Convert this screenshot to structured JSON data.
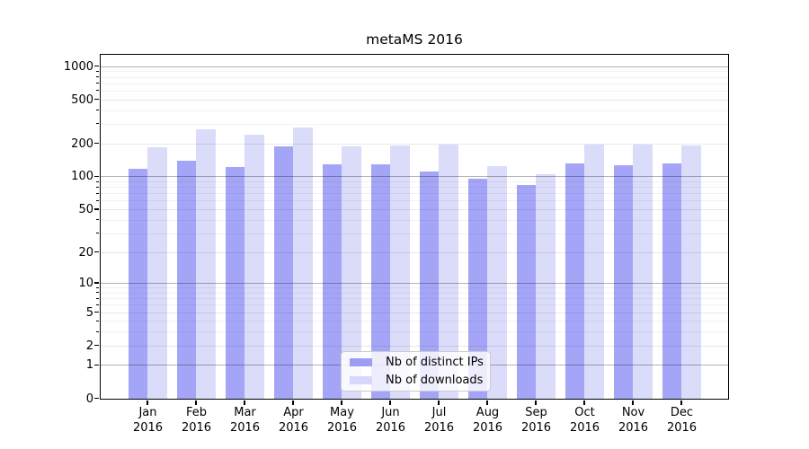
{
  "chart_data": {
    "type": "bar",
    "title": "metaMS 2016",
    "x_categories": [
      {
        "month": "Jan",
        "year": "2016"
      },
      {
        "month": "Feb",
        "year": "2016"
      },
      {
        "month": "Mar",
        "year": "2016"
      },
      {
        "month": "Apr",
        "year": "2016"
      },
      {
        "month": "May",
        "year": "2016"
      },
      {
        "month": "Jun",
        "year": "2016"
      },
      {
        "month": "Jul",
        "year": "2016"
      },
      {
        "month": "Aug",
        "year": "2016"
      },
      {
        "month": "Sep",
        "year": "2016"
      },
      {
        "month": "Oct",
        "year": "2016"
      },
      {
        "month": "Nov",
        "year": "2016"
      },
      {
        "month": "Dec",
        "year": "2016"
      }
    ],
    "series": [
      {
        "name": "Nb of distinct IPs",
        "values": [
          117,
          139,
          122,
          188,
          128,
          128,
          111,
          96,
          84,
          130,
          127,
          132
        ]
      },
      {
        "name": "Nb of downloads",
        "values": [
          184,
          270,
          241,
          277,
          186,
          190,
          193,
          125,
          105,
          195,
          195,
          190
        ]
      }
    ],
    "y_axis": {
      "scale": "log10(value+1)",
      "range": [
        0,
        1000
      ],
      "ticks": [
        {
          "label": "1000",
          "value": 1000
        },
        {
          "label": "500",
          "value": 500
        },
        {
          "label": "200",
          "value": 200
        },
        {
          "label": "100",
          "value": 100
        },
        {
          "label": "50",
          "value": 50
        },
        {
          "label": "20",
          "value": 20
        },
        {
          "label": "10",
          "value": 10
        },
        {
          "label": "5",
          "value": 5
        },
        {
          "label": "2",
          "value": 2
        },
        {
          "label": "1",
          "value": 1
        },
        {
          "label": "0",
          "value": 0
        }
      ],
      "minor_tick_values": [
        900,
        800,
        700,
        600,
        400,
        300,
        90,
        80,
        70,
        60,
        40,
        30,
        9,
        8,
        7,
        6,
        4,
        3
      ],
      "emphasized_gridline_values": [
        1,
        10,
        100,
        1000
      ]
    },
    "legend": {
      "position": "bottom-center",
      "entries": [
        "Nb of distinct IPs",
        "Nb of downloads"
      ]
    },
    "grid": "both"
  },
  "colors": {
    "bar_distinct_ips": "#a5a5f8",
    "bar_downloads": "#dbdbfa",
    "legend_swatch_distinct_ips": "#9d9df3",
    "legend_swatch_downloads": "#d7d7f9",
    "grid_power_line": "rgba(0,0,0,0.30)",
    "grid_labeled_line": "rgba(0,0,0,0.09)",
    "grid_minor_line": "rgba(0,0,0,0.05)",
    "frame": "#000000",
    "text": "#000000",
    "legend_background": "rgba(255,255,255,0.8)",
    "legend_border": "#cccccc"
  }
}
